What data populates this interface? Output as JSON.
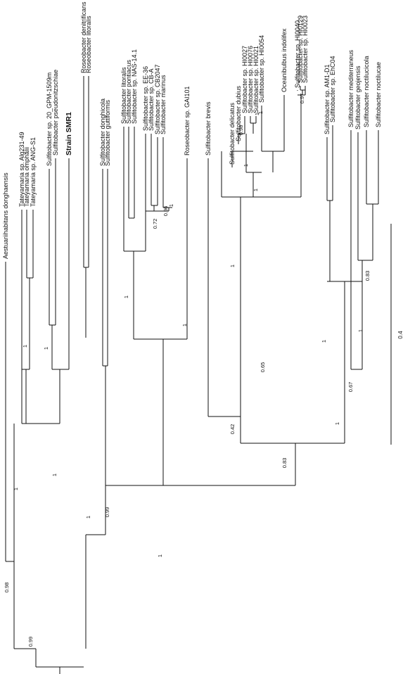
{
  "highlight_color": "#d71920",
  "line_color": "#111111",
  "taxa": [
    {
      "label": "Aestuariihabitans donghaensis"
    },
    {
      "label": "Tateyamaria sp. Alg231-49"
    },
    {
      "label": "Tateyamaria omphalii"
    },
    {
      "label": "Tateyamaria sp. ANG-S1"
    },
    {
      "label": "Sulfitobacter sp. 20_GPM-1509m"
    },
    {
      "label": "Sulfitobacter pseudonitzschiae"
    },
    {
      "label": "Strain SMR1",
      "highlight": true
    },
    {
      "label": "Roseobacter denitrificans"
    },
    {
      "label": "Roseobacter litoralis"
    },
    {
      "label": "Sulfitobacter donghicola"
    },
    {
      "label": "Sulfitobacter guttiformis"
    },
    {
      "label": "Sulfitobacter litoralis"
    },
    {
      "label": "Sulfitobacter pontiacus"
    },
    {
      "label": "Sulfitobacter sp. NAS-14.1"
    },
    {
      "label": "Sulfitobacter sp. EE-36"
    },
    {
      "label": "Sulfitobacter sp. CB-A"
    },
    {
      "label": "Sulfitobacter sp. CB2047"
    },
    {
      "label": "Sulfitobacter marinus"
    },
    {
      "label": "Roseobacter sp. GAI101"
    },
    {
      "label": "Sulfitobacter brevis"
    },
    {
      "label": "Sulfitobacter delicatus"
    },
    {
      "label": "Sulfitobacter dubius"
    },
    {
      "label": "Sulfitobacter sp. HI0027"
    },
    {
      "label": "Sulfitobacter sp. HI0076"
    },
    {
      "label": "Sulfitobacter sp. HI0021"
    },
    {
      "label": "Sulfitobacter sp. HI0054"
    },
    {
      "label": "Oceanibulbus indolifex"
    },
    {
      "label": "Sulfitobacter sp. HI0040"
    },
    {
      "label": "Sulfitobacter sp. HI0129"
    },
    {
      "label": "Sulfitobacter sp. HI0023"
    },
    {
      "label": "Sulfitobacter sp. AM1-D1"
    },
    {
      "label": "Sulfitobacter sp. EhC04"
    },
    {
      "label": "Sulfitobacter mediterraneus"
    },
    {
      "label": "Sulfitobacter geojensis"
    },
    {
      "label": "Sulfitobacter noctilucicola"
    },
    {
      "label": "Sulfitobacter noctilucae"
    }
  ],
  "support_values": [
    "0.99",
    "0.98",
    "1",
    "1",
    "1",
    "1",
    "1",
    "1",
    "0.99",
    "1",
    "1",
    "0.83",
    "0.42",
    "1",
    "0.72",
    "0.96",
    "1",
    "0.65",
    "1",
    "1",
    "0.98",
    "1",
    "1",
    "0.97",
    "1",
    "1",
    "0.67",
    "1",
    "0.83"
  ],
  "scale_bar": {
    "label": "0.4"
  }
}
